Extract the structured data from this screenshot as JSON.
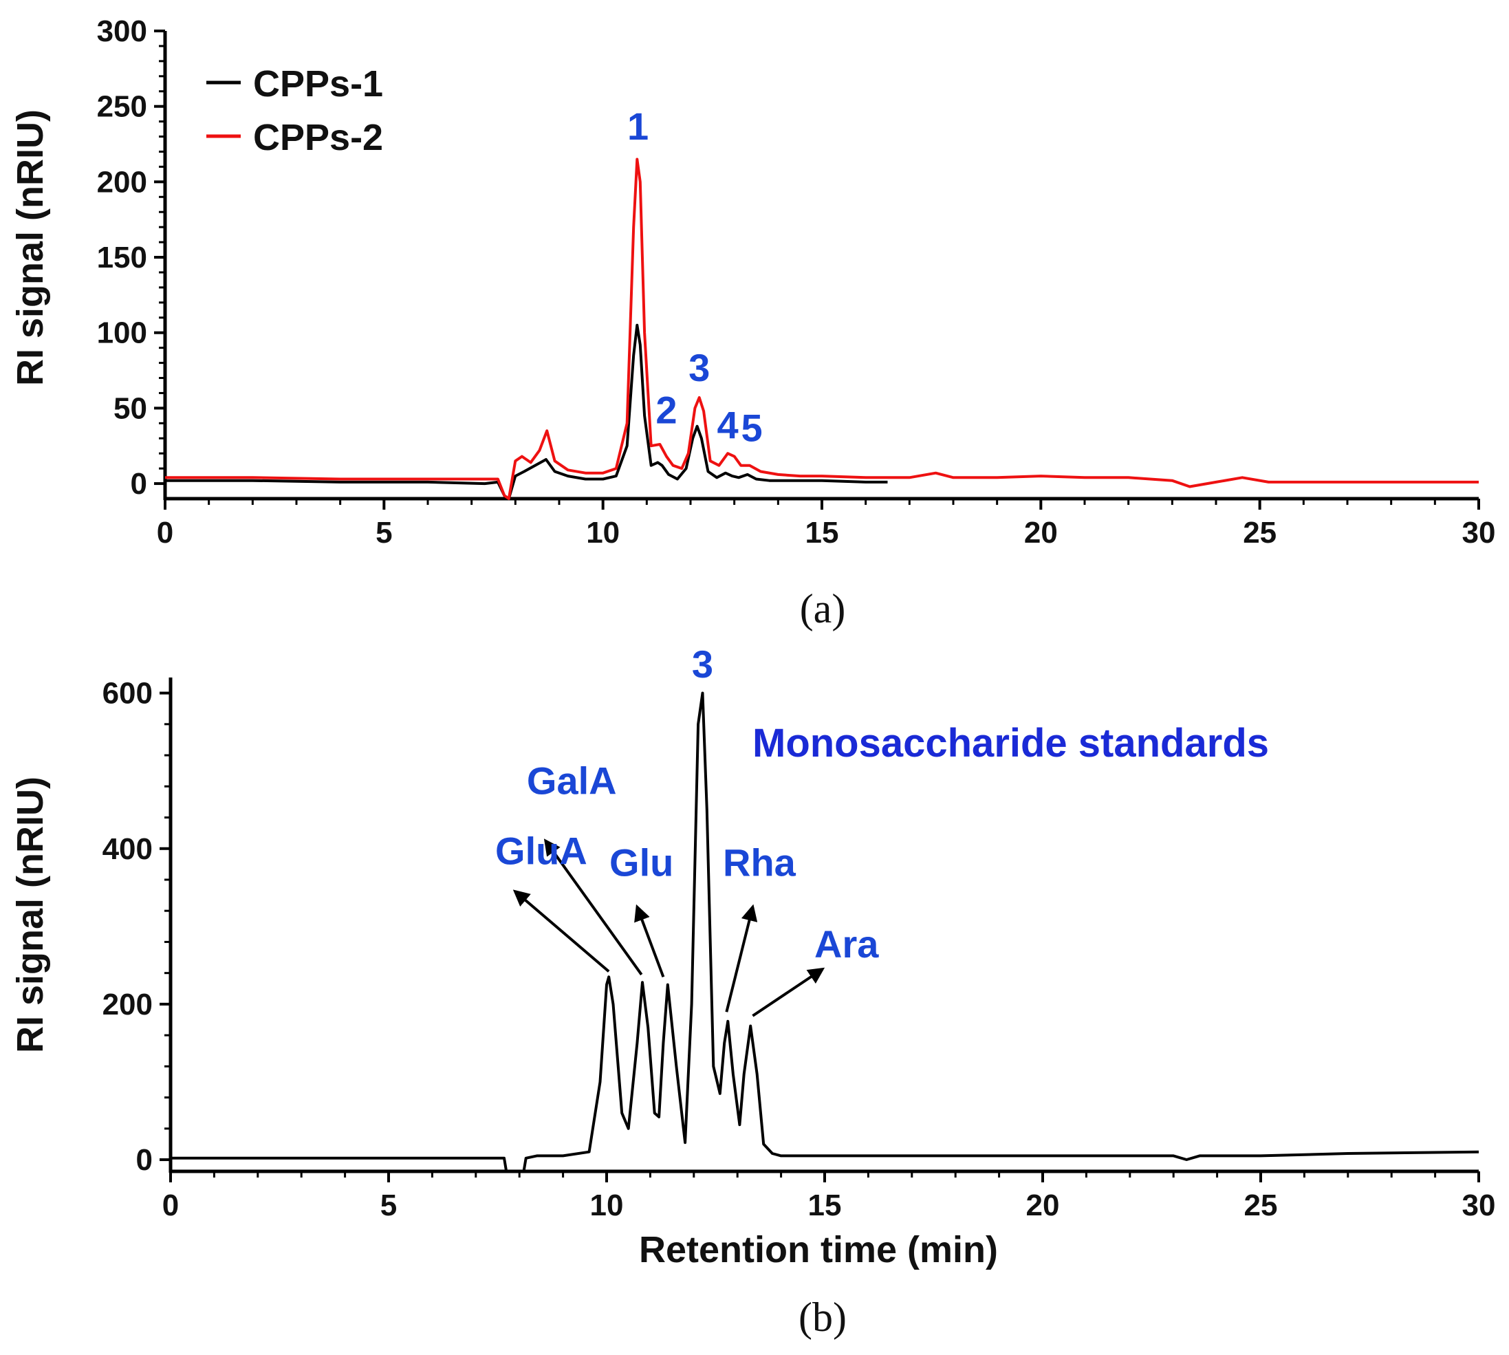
{
  "chart_data": [
    {
      "panel": "(a)",
      "type": "line",
      "xlabel": "",
      "ylabel": "RI signal (nRIU)",
      "xlim": [
        0,
        30
      ],
      "ylim": [
        -10,
        300
      ],
      "x_ticks": [
        "0",
        "5",
        "10",
        "15",
        "20",
        "25",
        "30"
      ],
      "y_ticks": [
        "0",
        "50",
        "100",
        "150",
        "200",
        "250",
        "300"
      ],
      "legend_position": "top-left",
      "series": [
        {
          "name": "CPPs-1",
          "color": "#000000",
          "x": [
            0,
            2,
            4,
            6,
            7.3,
            7.6,
            7.75,
            7.85,
            8.0,
            8.2,
            8.45,
            8.7,
            8.9,
            9.2,
            9.6,
            10.0,
            10.3,
            10.55,
            10.7,
            10.78,
            10.85,
            10.95,
            11.1,
            11.25,
            11.35,
            11.5,
            11.7,
            11.9,
            12.05,
            12.15,
            12.25,
            12.4,
            12.6,
            12.8,
            12.95,
            13.1,
            13.3,
            13.5,
            13.8,
            14.2,
            15.0,
            16.0,
            16.5
          ],
          "y": [
            2,
            2,
            1,
            1,
            0,
            1,
            -8,
            -10,
            5,
            8,
            12,
            16,
            8,
            5,
            3,
            3,
            5,
            25,
            85,
            105,
            92,
            45,
            12,
            14,
            12,
            6,
            3,
            10,
            30,
            38,
            30,
            8,
            4,
            7,
            5,
            4,
            6,
            3,
            2,
            2,
            2,
            1,
            1
          ]
        },
        {
          "name": "CPPs-2",
          "color": "#ee1111",
          "x": [
            0,
            2,
            4,
            6,
            7.3,
            7.6,
            7.75,
            7.85,
            8.0,
            8.15,
            8.35,
            8.55,
            8.72,
            8.9,
            9.2,
            9.6,
            10.0,
            10.3,
            10.55,
            10.7,
            10.78,
            10.85,
            10.95,
            11.1,
            11.3,
            11.45,
            11.6,
            11.8,
            11.95,
            12.1,
            12.2,
            12.3,
            12.45,
            12.65,
            12.85,
            13.0,
            13.15,
            13.35,
            13.6,
            14.0,
            14.5,
            15.0,
            16.0,
            17.0,
            17.6,
            18.0,
            19.0,
            20.0,
            21.0,
            22.0,
            23.0,
            23.4,
            24.0,
            24.6,
            25.2,
            26.0,
            27.0,
            28.0,
            29.0,
            30.0
          ],
          "y": [
            4,
            4,
            3,
            3,
            3,
            3,
            -8,
            -10,
            15,
            18,
            14,
            22,
            35,
            15,
            9,
            7,
            7,
            10,
            40,
            170,
            215,
            200,
            100,
            25,
            26,
            18,
            12,
            10,
            20,
            50,
            57,
            48,
            15,
            12,
            20,
            18,
            12,
            12,
            8,
            6,
            5,
            5,
            4,
            4,
            7,
            4,
            4,
            5,
            4,
            4,
            2,
            -2,
            1,
            4,
            1,
            1,
            1,
            1,
            1,
            1
          ]
        }
      ],
      "peak_labels": [
        {
          "text": "1",
          "x": 10.8,
          "y": 228
        },
        {
          "text": "2",
          "x": 11.45,
          "y": 40
        },
        {
          "text": "3",
          "x": 12.2,
          "y": 68
        },
        {
          "text": "4",
          "x": 12.85,
          "y": 30
        },
        {
          "text": "5",
          "x": 13.4,
          "y": 28
        }
      ]
    },
    {
      "panel": "(b)",
      "type": "line",
      "xlabel": "Retention time (min)",
      "ylabel": "RI signal (nRIU)",
      "xlim": [
        0,
        30
      ],
      "ylim": [
        -15,
        620
      ],
      "x_ticks": [
        "0",
        "5",
        "10",
        "15",
        "20",
        "25",
        "30"
      ],
      "y_ticks": [
        "0",
        "200",
        "400",
        "600"
      ],
      "annotation": "Monosaccharide standards",
      "series": [
        {
          "name": "Monosaccharide standards",
          "color": "#000000",
          "x": [
            0,
            2,
            4,
            6,
            7.5,
            7.65,
            7.7,
            8.1,
            8.15,
            8.4,
            9.0,
            9.6,
            9.85,
            10.0,
            10.05,
            10.15,
            10.35,
            10.5,
            10.7,
            10.82,
            10.95,
            11.1,
            11.2,
            11.3,
            11.4,
            11.6,
            11.8,
            11.95,
            12.1,
            12.2,
            12.3,
            12.45,
            12.6,
            12.7,
            12.78,
            12.9,
            13.05,
            13.15,
            13.3,
            13.45,
            13.6,
            13.8,
            14.0,
            15.0,
            17.0,
            20.0,
            22.0,
            23.0,
            23.3,
            23.6,
            25.0,
            27.0,
            30.0
          ],
          "y": [
            2,
            2,
            2,
            2,
            2,
            2,
            -15,
            -15,
            2,
            5,
            5,
            10,
            100,
            225,
            235,
            200,
            60,
            40,
            150,
            228,
            170,
            60,
            55,
            150,
            225,
            120,
            22,
            200,
            560,
            600,
            450,
            120,
            85,
            150,
            178,
            110,
            45,
            110,
            172,
            110,
            20,
            8,
            5,
            5,
            5,
            5,
            5,
            5,
            0,
            5,
            5,
            8,
            10
          ]
        }
      ],
      "peak_labels": [
        {
          "text": "GluA",
          "x": 8.5,
          "y": 380
        },
        {
          "text": "GalA",
          "x": 9.2,
          "y": 470
        },
        {
          "text": "Glu",
          "x": 10.8,
          "y": 365
        },
        {
          "text": "3",
          "x": 12.2,
          "y": 620
        },
        {
          "text": "Rha",
          "x": 13.5,
          "y": 365
        },
        {
          "text": "Ara",
          "x": 15.5,
          "y": 260
        }
      ],
      "arrows": [
        {
          "from": [
            10.05,
            242
          ],
          "to": [
            7.9,
            345
          ]
        },
        {
          "from": [
            10.8,
            238
          ],
          "to": [
            8.6,
            410
          ]
        },
        {
          "from": [
            11.3,
            235
          ],
          "to": [
            10.7,
            325
          ]
        },
        {
          "from": [
            12.75,
            190
          ],
          "to": [
            13.35,
            325
          ]
        },
        {
          "from": [
            13.35,
            185
          ],
          "to": [
            14.95,
            245
          ]
        }
      ]
    }
  ]
}
